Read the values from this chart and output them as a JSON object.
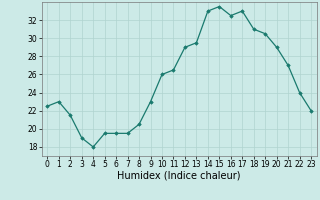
{
  "x": [
    0,
    1,
    2,
    3,
    4,
    5,
    6,
    7,
    8,
    9,
    10,
    11,
    12,
    13,
    14,
    15,
    16,
    17,
    18,
    19,
    20,
    21,
    22,
    23
  ],
  "y": [
    22.5,
    23.0,
    21.5,
    19.0,
    18.0,
    19.5,
    19.5,
    19.5,
    20.5,
    23.0,
    26.0,
    26.5,
    29.0,
    29.5,
    33.0,
    33.5,
    32.5,
    33.0,
    31.0,
    30.5,
    29.0,
    27.0,
    24.0,
    22.0
  ],
  "line_color": "#1a7a6e",
  "marker": "D",
  "marker_size": 1.8,
  "bg_color": "#cceae7",
  "grid_color": "#b0d4d0",
  "xlabel": "Humidex (Indice chaleur)",
  "ylim": [
    17,
    34
  ],
  "xlim": [
    -0.5,
    23.5
  ],
  "yticks": [
    18,
    20,
    22,
    24,
    26,
    28,
    30,
    32
  ],
  "xticks": [
    0,
    1,
    2,
    3,
    4,
    5,
    6,
    7,
    8,
    9,
    10,
    11,
    12,
    13,
    14,
    15,
    16,
    17,
    18,
    19,
    20,
    21,
    22,
    23
  ],
  "tick_fontsize": 5.5,
  "xlabel_fontsize": 7.0,
  "linewidth": 0.9
}
